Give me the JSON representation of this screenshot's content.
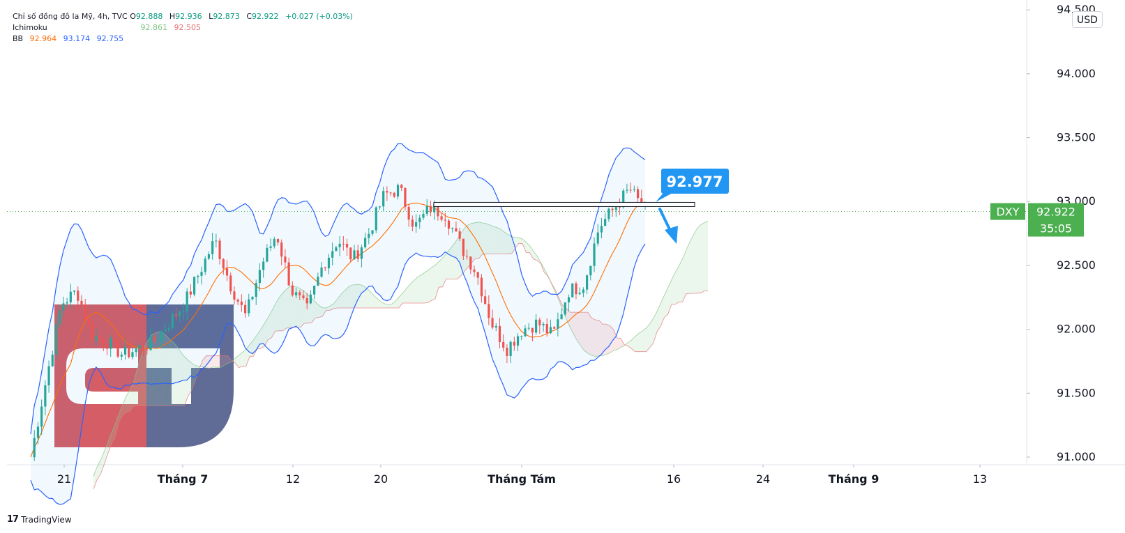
{
  "legend": {
    "symbol_line": "Chỉ số đồng đô la Mỹ, 4h, TVC",
    "open_label": "O",
    "open": "92.888",
    "high_label": "H",
    "high": "92.936",
    "low_label": "L",
    "low": "92.873",
    "close_label": "C",
    "close": "92.922",
    "change": "+0.027 (+0.03%)",
    "ichimoku_label": "Ichimoku",
    "ichimoku_v1": "92.861",
    "ichimoku_v2": "92.505",
    "bb_label": "BB",
    "bb_basis": "92.964",
    "bb_upper": "93.174",
    "bb_lower": "92.755"
  },
  "currency_button": "USD",
  "footer_logo": "TradingView",
  "colors": {
    "up": "#26a69a",
    "down": "#ef5350",
    "bb_band": "#2962ff",
    "bb_basis": "#ff6d00",
    "cloud_green": "#a5d6a7",
    "cloud_red": "#ef9a9a",
    "price_tag": "#4caf50",
    "callout": "#2196f3"
  },
  "chart_data": {
    "type": "line",
    "symbol_tag": "DXY",
    "last_price": "92.922",
    "countdown": "35:05",
    "annotation_price": "92.977",
    "yaxis_ticks": [
      "91.000",
      "91.500",
      "92.000",
      "92.500",
      "93.000",
      "93.500",
      "94.000",
      "94.500"
    ],
    "ylim": [
      90.94,
      94.55
    ],
    "xaxis_ticks": [
      {
        "label": "21",
        "bold": false
      },
      {
        "label": "Tháng 7",
        "bold": true
      },
      {
        "label": "12",
        "bold": false
      },
      {
        "label": "20",
        "bold": false
      },
      {
        "label": "Tháng Tám",
        "bold": true
      },
      {
        "label": "16",
        "bold": false
      },
      {
        "label": "24",
        "bold": false
      },
      {
        "label": "Tháng 9",
        "bold": true
      },
      {
        "label": "13",
        "bold": false
      }
    ],
    "series": [
      {
        "values": [
          91.0,
          91.6,
          92.2,
          92.3,
          91.95,
          91.9,
          91.8,
          91.85,
          91.9,
          92.05,
          92.2,
          92.45,
          92.7,
          92.35,
          92.1,
          92.5,
          92.75,
          92.3,
          92.15,
          92.5,
          92.7,
          92.55,
          92.75,
          93.05,
          93.1,
          92.8,
          92.95,
          92.9,
          92.65,
          92.45,
          92.05,
          91.85,
          92.0,
          92.05,
          91.95,
          92.3,
          92.35,
          92.8,
          92.95,
          93.1,
          92.92
        ]
      }
    ]
  }
}
